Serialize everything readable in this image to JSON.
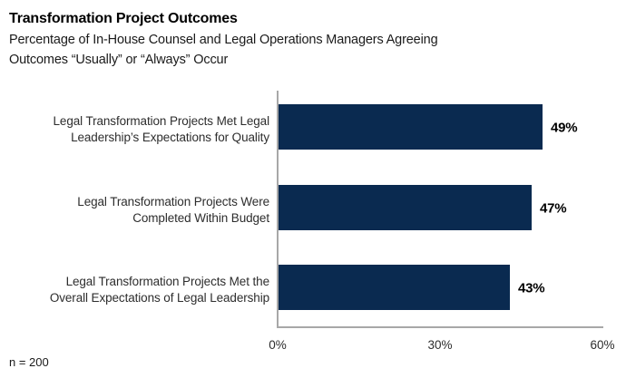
{
  "header": {
    "title": "Transformation Project Outcomes",
    "subtitle_line1": "Percentage of In-House Counsel and Legal Operations Managers Agreeing",
    "subtitle_line2": "Outcomes “Usually” or “Always” Occur"
  },
  "chart_data": {
    "type": "bar",
    "orientation": "horizontal",
    "title": "Transformation Project Outcomes",
    "subtitle": "Percentage of In-House Counsel and Legal Operations Managers Agreeing Outcomes “Usually” or “Always” Occur",
    "categories": [
      "Legal Transformation Projects Met Legal Leadership’s Expectations for Quality",
      "Legal Transformation Projects Were Completed Within Budget",
      "Legal Transformation Projects Met the Overall Expectations of Legal Leadership"
    ],
    "category_lines": [
      [
        "Legal Transformation Projects Met Legal",
        "Leadership’s Expectations for Quality"
      ],
      [
        "Legal Transformation Projects Were",
        "Completed Within Budget"
      ],
      [
        "Legal Transformation Projects Met the",
        "Overall Expectations of Legal Leadership"
      ]
    ],
    "values": [
      49,
      47,
      43
    ],
    "value_labels": [
      "49%",
      "47%",
      "43%"
    ],
    "xlim": [
      0,
      60
    ],
    "x_ticks": [
      0,
      30,
      60
    ],
    "x_tick_labels": [
      "0%",
      "30%",
      "60%"
    ],
    "bar_color": "#0a2a50",
    "axis_color": "#a8a8a8",
    "grid": false,
    "legend": false,
    "xlabel": "",
    "ylabel": ""
  },
  "footer": {
    "note": "n = 200"
  }
}
